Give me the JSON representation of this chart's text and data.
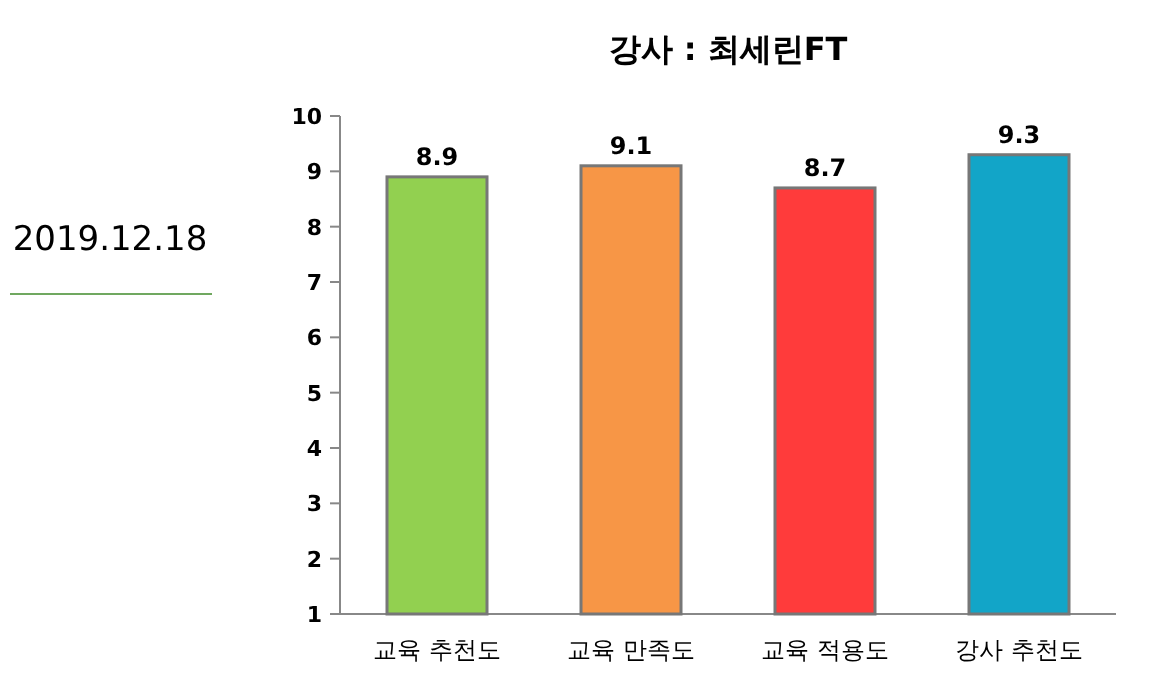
{
  "chart_data": {
    "type": "bar",
    "title": "강사 : 최세린FT",
    "categories": [
      "교육 추천도",
      "교육 만족도",
      "교육 적용도",
      "강사 추천도"
    ],
    "values": [
      8.9,
      9.1,
      8.7,
      9.3
    ],
    "colors": [
      "#92d050",
      "#f79646",
      "#ff3b3b",
      "#12a5c8"
    ],
    "ylim": [
      1,
      10
    ],
    "yticks": [
      1,
      2,
      3,
      4,
      5,
      6,
      7,
      8,
      9,
      10
    ],
    "data_labels": true,
    "annotations": [
      "2019.12.18"
    ]
  }
}
